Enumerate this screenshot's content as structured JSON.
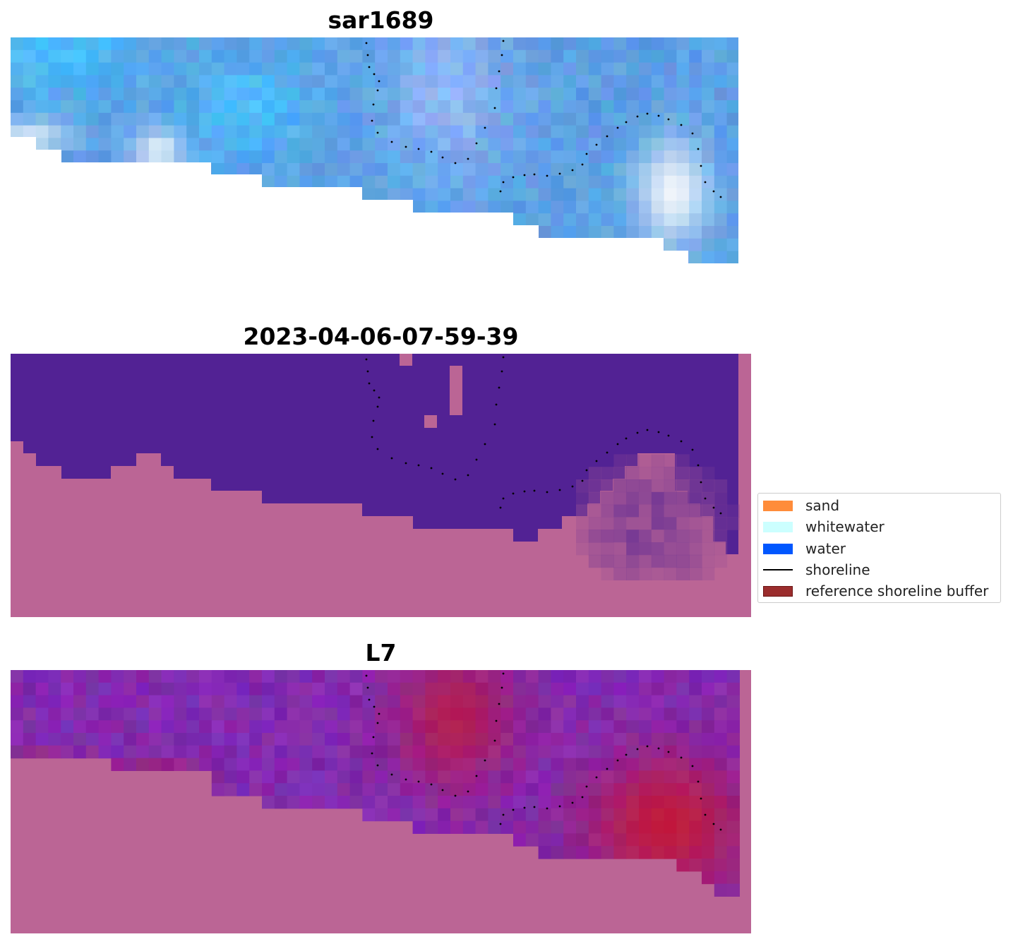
{
  "panels": [
    {
      "title": "sar1689"
    },
    {
      "title": "2023-04-06-07-59-39"
    },
    {
      "title": "L7"
    }
  ],
  "legend": {
    "items": [
      {
        "label": "sand",
        "color": "#FF8C3A"
      },
      {
        "label": "whitewater",
        "color": "#CCFFFF"
      },
      {
        "label": "water",
        "color": "#0057FF"
      },
      {
        "label": "shoreline",
        "color": "#000000"
      },
      {
        "label": "reference shoreline buffer",
        "color": "#9B2D2D"
      }
    ]
  },
  "colors": {
    "land": "#BB6595",
    "water_class": "#522294",
    "blue_image": "#5A9BE0",
    "magenta_index": "#7A2A9E",
    "hotspot": "#C1002E"
  }
}
